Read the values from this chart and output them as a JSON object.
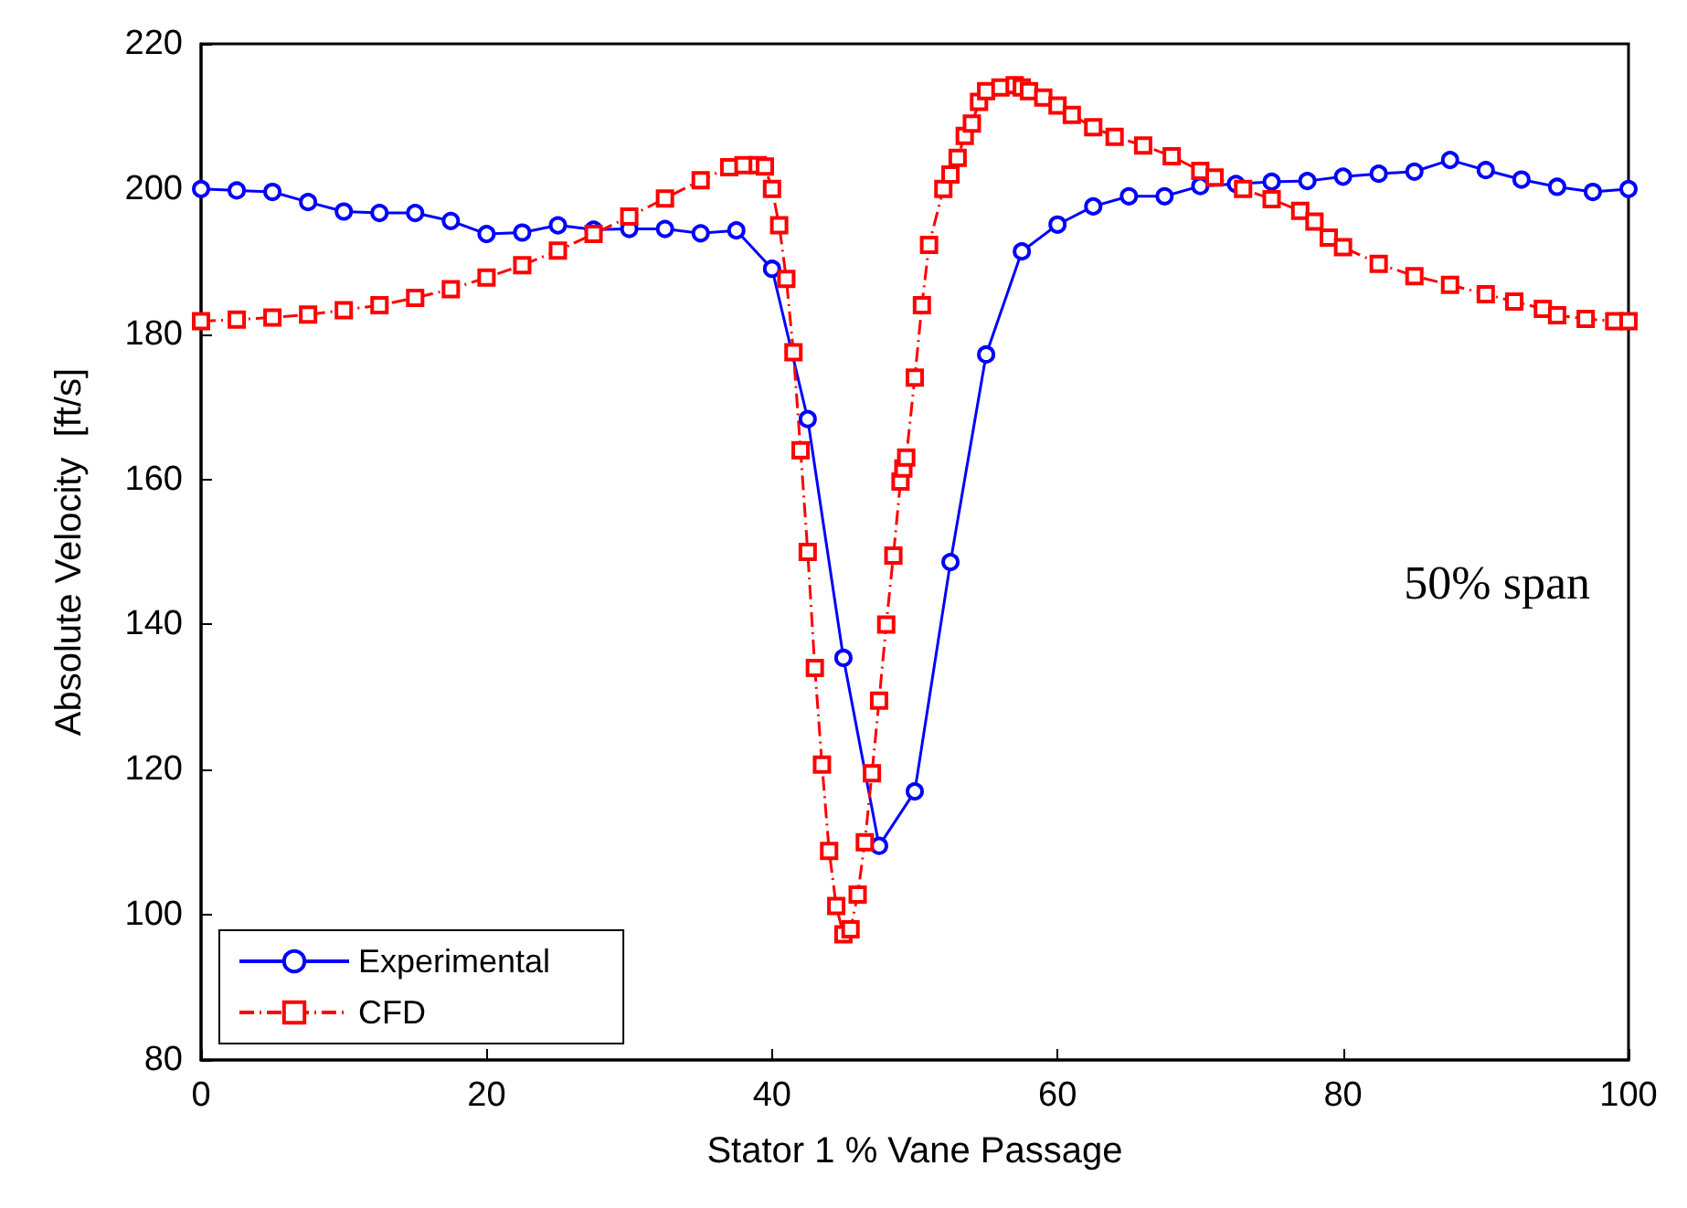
{
  "chart_data": {
    "type": "line",
    "xlabel": "Stator 1 % Vane Passage",
    "ylabel": "Absolute Velocity  [ft/s]",
    "annotations": [
      "50% span"
    ],
    "xlim": [
      0,
      100
    ],
    "xticks": [
      0,
      20,
      40,
      60,
      80,
      100
    ],
    "ylim": [
      80,
      220
    ],
    "yticks": [
      80,
      100,
      120,
      140,
      160,
      180,
      200,
      220
    ],
    "grid": false,
    "legend": "bottom left",
    "series": [
      {
        "name": "Experimental",
        "color": "#0000ff",
        "marker": "circle",
        "line_style": "solid",
        "x": [
          0,
          2.5,
          5,
          7.5,
          10,
          12.5,
          15,
          17.5,
          20,
          22.5,
          25,
          27.5,
          30,
          32.5,
          35,
          37.5,
          40,
          42.5,
          45,
          47.5,
          50,
          52.5,
          55,
          57.5,
          60,
          62.5,
          65,
          67.5,
          70,
          72.5,
          75,
          77.5,
          80,
          82.5,
          85,
          87.5,
          90,
          92.5,
          95,
          97.5,
          100
        ],
        "values": [
          200,
          199.8,
          199.6,
          198.2,
          196.9,
          196.7,
          196.7,
          195.6,
          193.8,
          194,
          195,
          194.4,
          194.5,
          194.5,
          193.9,
          194.3,
          189,
          168.3,
          135.4,
          109.5,
          117,
          148.6,
          177.2,
          191.4,
          195.1,
          197.6,
          199,
          199,
          200.4,
          200.7,
          201,
          201.1,
          201.7,
          202.1,
          202.4,
          204,
          202.6,
          201.3,
          200.3,
          199.6,
          200
        ]
      },
      {
        "name": "CFD",
        "color": "#ff0000",
        "marker": "square",
        "line_style": "dashed",
        "x": [
          0,
          2.5,
          5,
          7.5,
          10,
          12.5,
          15,
          17.5,
          20,
          22.5,
          25,
          27.5,
          30,
          32.5,
          35,
          37,
          38,
          39,
          39.5,
          40,
          40.5,
          41,
          41.5,
          42,
          42.5,
          43,
          43.5,
          44,
          44.5,
          45,
          45.5,
          46,
          46.5,
          47,
          47.5,
          48,
          48.5,
          49,
          49.2,
          49.4,
          50,
          50.5,
          51,
          52,
          52.5,
          53,
          53.5,
          54,
          54.5,
          55,
          56,
          57,
          57.5,
          58,
          59,
          60,
          61,
          62.5,
          64,
          66,
          68,
          70,
          71,
          73,
          75,
          77,
          78,
          79,
          80,
          82.5,
          85,
          87.5,
          90,
          92,
          94,
          95,
          97,
          99,
          100
        ],
        "values": [
          181.8,
          182,
          182.3,
          182.7,
          183.3,
          184,
          185,
          186.2,
          187.8,
          189.5,
          191.5,
          193.8,
          196.2,
          198.7,
          201.2,
          203,
          203.3,
          203.3,
          203.1,
          200,
          195,
          187.6,
          177.5,
          164,
          150,
          134,
          120.7,
          108.8,
          101.2,
          97.3,
          98,
          102.8,
          110,
          119.5,
          129.5,
          140,
          149.5,
          159.7,
          161.5,
          163,
          174,
          184,
          192.3,
          200,
          202,
          204.3,
          207.3,
          209,
          212,
          213.5,
          214,
          214.3,
          214,
          213.5,
          212.6,
          211.5,
          210.2,
          208.5,
          207.2,
          206,
          204.5,
          202.5,
          201.6,
          200,
          198.6,
          197,
          195.5,
          193.3,
          192,
          189.7,
          188,
          186.8,
          185.5,
          184.5,
          183.5,
          182.6,
          182.1,
          181.8,
          181.8
        ]
      }
    ]
  }
}
